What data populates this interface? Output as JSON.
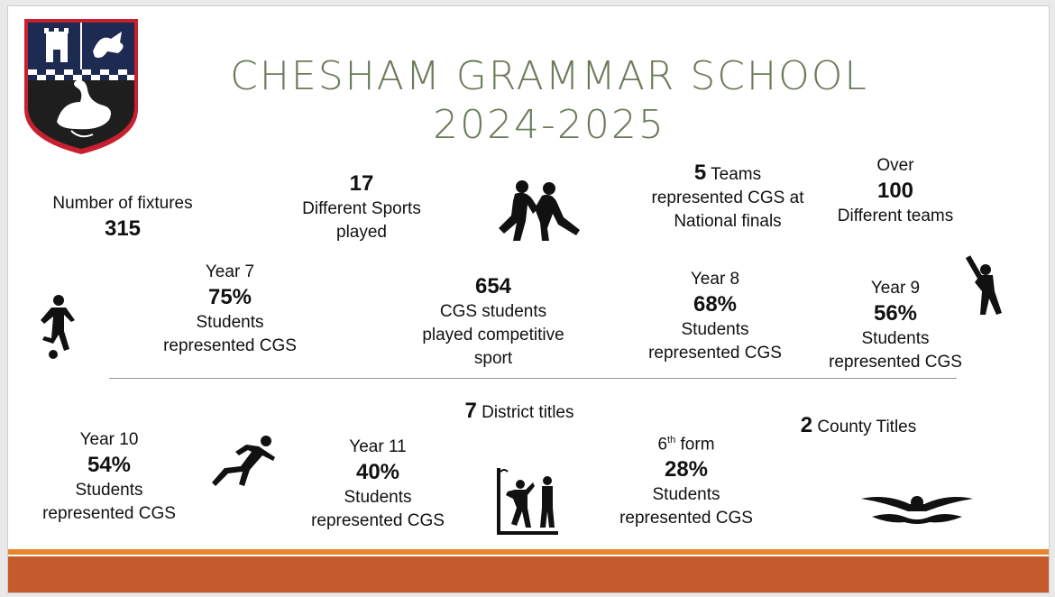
{
  "title": {
    "line1": "CHESHAM GRAMMAR SCHOOL",
    "line2": "2024-2025"
  },
  "stats": {
    "fixtures": {
      "label": "Number of fixtures",
      "value": "315"
    },
    "sports": {
      "value": "17",
      "line1": "Different Sports",
      "line2": "played"
    },
    "national": {
      "value": "5",
      "line1": "Teams",
      "line2": "represented CGS at",
      "line3": "National finals"
    },
    "teams": {
      "pre": "Over",
      "value": "100",
      "line1": "Different teams"
    },
    "year7": {
      "label": "Year 7",
      "value": "75%",
      "line1": "Students",
      "line2": "represented CGS"
    },
    "competitive": {
      "value": "654",
      "line1": "CGS students",
      "line2": "played competitive",
      "line3": "sport"
    },
    "year8": {
      "label": "Year 8",
      "value": "68%",
      "line1": "Students",
      "line2": "represented CGS"
    },
    "year9": {
      "label": "Year 9",
      "value": "56%",
      "line1": "Students",
      "line2": "represented CGS"
    },
    "district": {
      "value": "7",
      "label": "District titles"
    },
    "county": {
      "value": "2",
      "label": "County Titles"
    },
    "year10": {
      "label": "Year 10",
      "value": "54%",
      "line1": "Students",
      "line2": "represented CGS"
    },
    "year11": {
      "label": "Year 11",
      "value": "40%",
      "line1": "Students",
      "line2": "represented CGS"
    },
    "sixth": {
      "label_num": "6",
      "label_sup": "th",
      "label_rest": "form",
      "value": "28%",
      "line1": "Students",
      "line2": "represented CGS"
    }
  },
  "icons": [
    "school-crest-icon",
    "football-player-icon",
    "rugby-players-icon",
    "cricket-player-icon",
    "sprinter-icon",
    "netball-players-icon",
    "swimmer-icon"
  ],
  "colors": {
    "title": "#6b7b5a",
    "bar_orange": "#e8852c",
    "bar_rust": "#c55a2c",
    "crest_red": "#c8202f",
    "crest_navy": "#1d2a52"
  }
}
